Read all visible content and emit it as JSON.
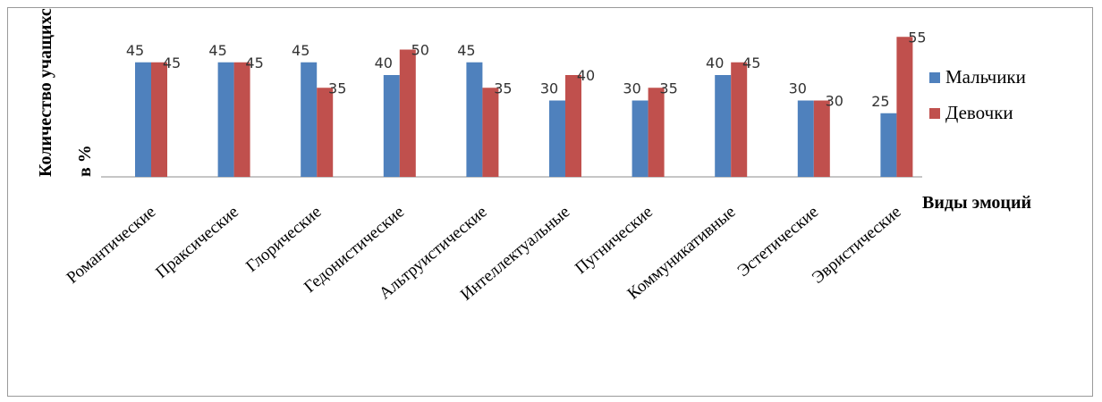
{
  "chart_data": {
    "type": "bar",
    "categories": [
      "Романтические",
      "Праксические",
      "Глорические",
      "Гедонистические",
      "Альтруистические",
      "Интеллектуальные",
      "Пугнические",
      "Коммуникативные",
      "Эстетические",
      "Эвристические"
    ],
    "series": [
      {
        "name": "Мальчики",
        "color": "#4f81bd",
        "values": [
          45,
          45,
          45,
          40,
          45,
          30,
          30,
          40,
          30,
          25
        ]
      },
      {
        "name": "Девочки",
        "color": "#c0504d",
        "values": [
          45,
          45,
          35,
          50,
          35,
          40,
          35,
          45,
          30,
          55
        ]
      }
    ],
    "xlabel": "Виды эмоций",
    "ylabel_line1": "Количество учащихся,",
    "ylabel_line2": "в %",
    "ylim": [
      0,
      55
    ],
    "grid": false,
    "legend_position": "right"
  }
}
